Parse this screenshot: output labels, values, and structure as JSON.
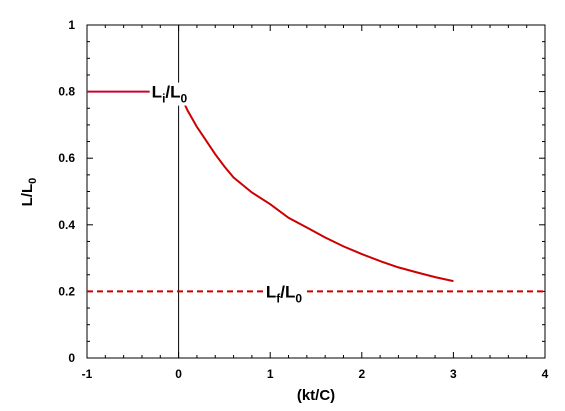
{
  "chart_data": {
    "type": "line",
    "xlabel": "(kt/C)",
    "ylabel": {
      "main": "L/L",
      "sub": "0"
    },
    "xlim": [
      -1,
      4
    ],
    "ylim": [
      0,
      1
    ],
    "xticks": [
      "-1",
      "0",
      "1",
      "2",
      "3",
      "4"
    ],
    "yticks": [
      "0",
      "0.2",
      "0.4",
      "0.6",
      "0.8",
      "1"
    ],
    "grid": false,
    "series": [
      {
        "style": "solid",
        "color": "#cc0000",
        "x": [
          0,
          0.1,
          0.2,
          0.3,
          0.4,
          0.5,
          0.6,
          0.8,
          1.0,
          1.2,
          1.4,
          1.6,
          1.8,
          2.0,
          2.2,
          2.4,
          2.6,
          2.8,
          3.0
        ],
        "y": [
          0.8,
          0.742,
          0.694,
          0.653,
          0.612,
          0.575,
          0.542,
          0.497,
          0.462,
          0.421,
          0.392,
          0.362,
          0.335,
          0.312,
          0.291,
          0.272,
          0.257,
          0.243,
          0.231
        ]
      },
      {
        "style": "solid",
        "color": "#cc0033",
        "x": [
          -1,
          0
        ],
        "y": [
          0.8,
          0.8
        ]
      },
      {
        "style": "dashed",
        "color": "#cc0000",
        "x": [
          -1,
          4
        ],
        "y": [
          0.2,
          0.2
        ]
      }
    ],
    "reference_lines": [
      {
        "orientation": "vertical",
        "x": 0,
        "color": "#000000"
      }
    ],
    "annotations": [
      {
        "main1": "L",
        "sub1": "i",
        "mid": "/L",
        "sub2": "0",
        "x": -0.1,
        "y": 0.8
      },
      {
        "main1": "L",
        "sub1": "f",
        "mid": "/L",
        "sub2": "0",
        "x": 1.15,
        "y": 0.2
      }
    ]
  }
}
